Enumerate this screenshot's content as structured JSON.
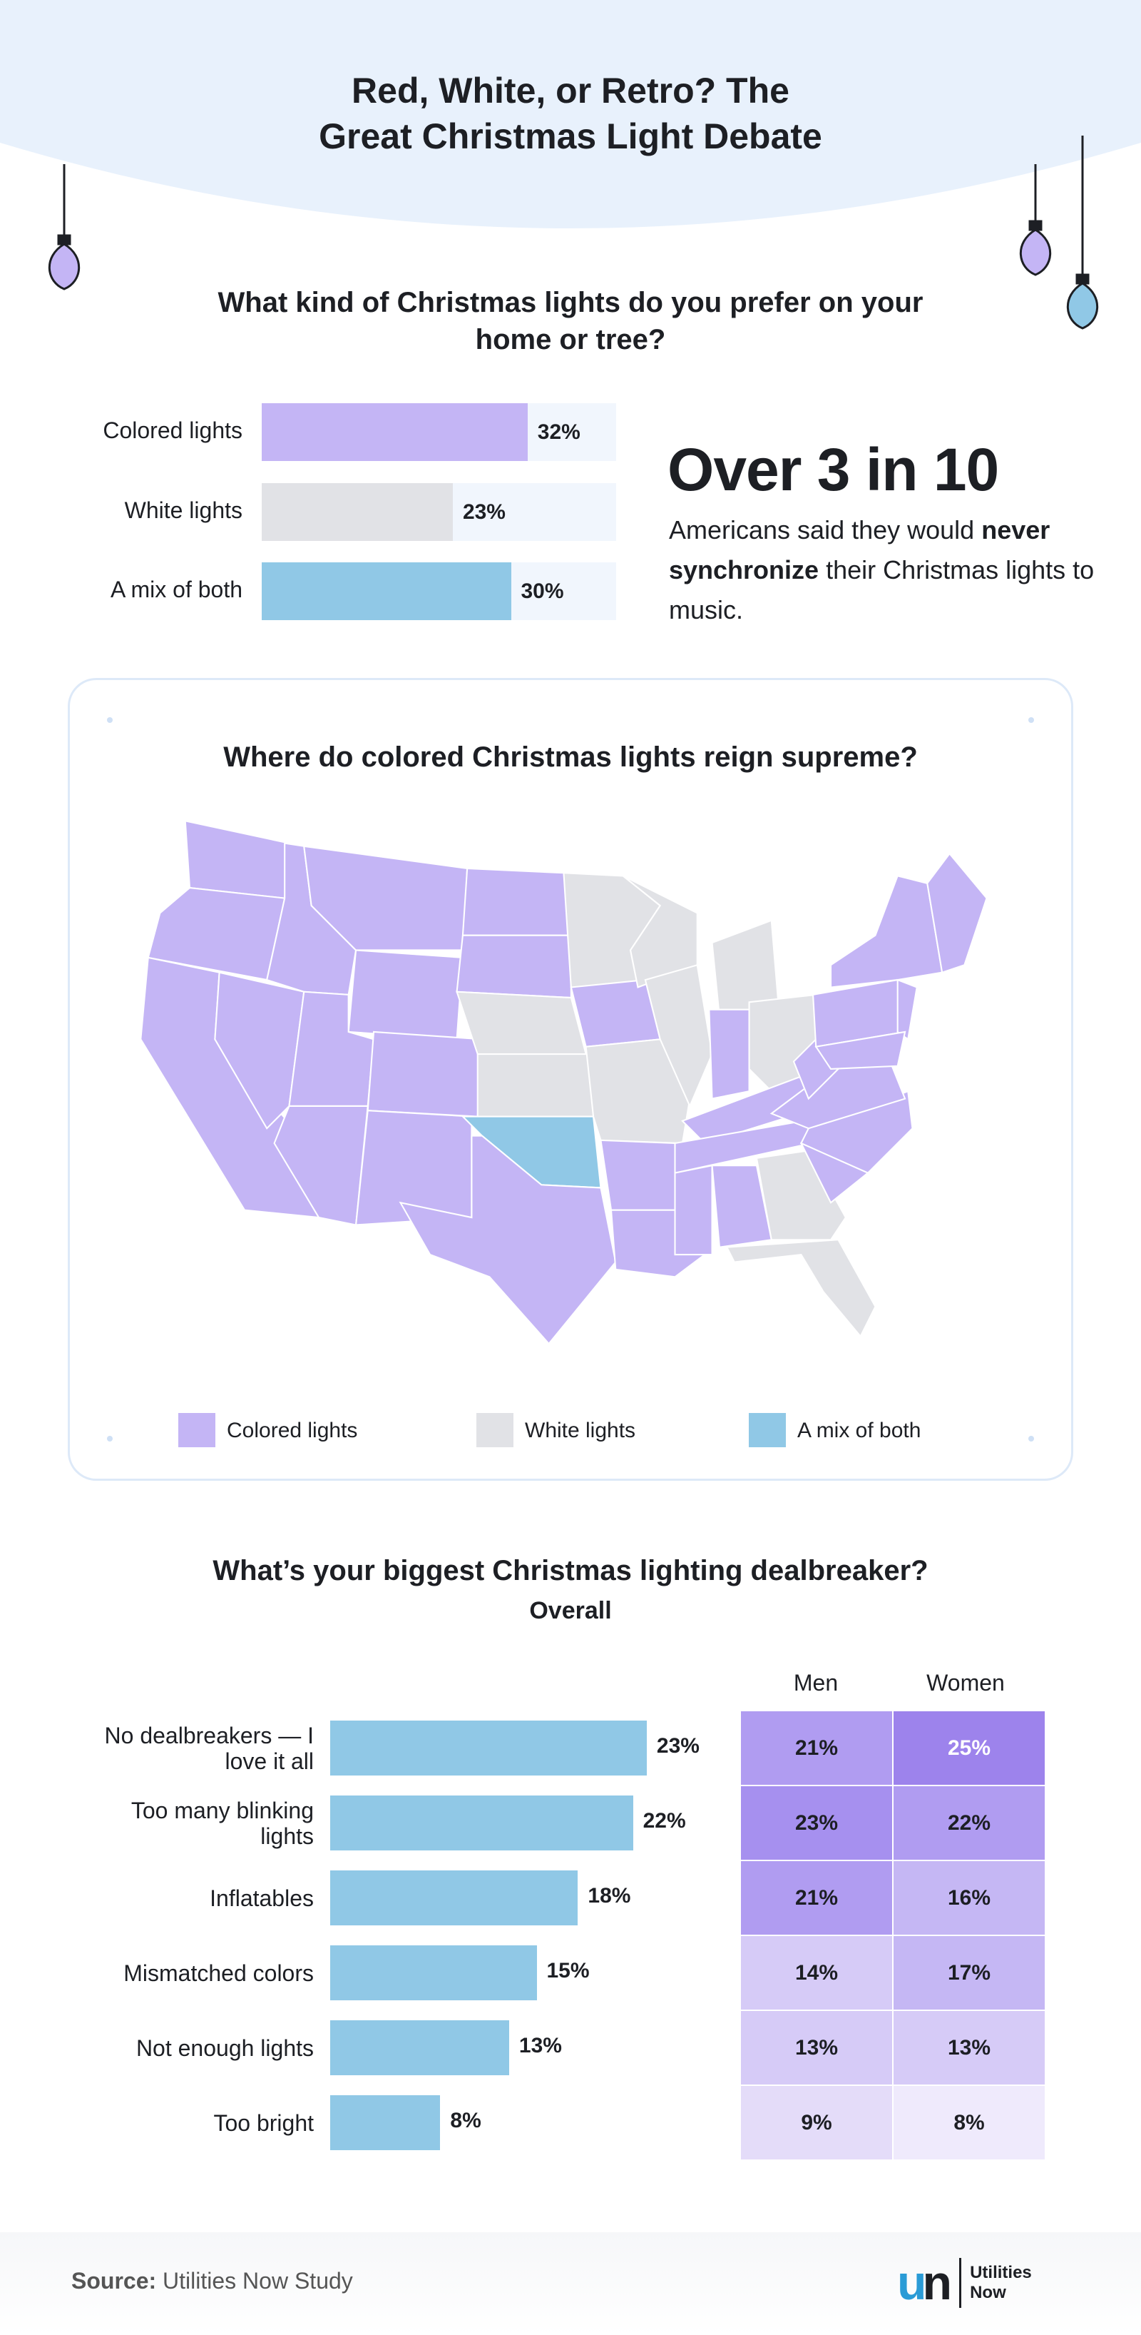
{
  "title": "Red, White, or Retro? The Great Christmas Light Debate",
  "q1": {
    "question": "What kind of Christmas lights do you prefer on your home or tree?",
    "chart_data": {
      "type": "bar",
      "categories": [
        "Colored lights",
        "White lights",
        "A mix of both"
      ],
      "values": [
        32,
        23,
        30
      ],
      "labels": [
        "32%",
        "23%",
        "30%"
      ],
      "colors": [
        "#c4b5f5",
        "#e1e2e6",
        "#90c8e6"
      ]
    }
  },
  "stat": {
    "headline": "Over 3 in 10",
    "text_before": "Americans said they would",
    "bold": "never synchronize",
    "text_after": " their Christmas lights to music."
  },
  "map": {
    "title": "Where do colored Christmas lights reign supreme?",
    "legend": [
      {
        "label": "Colored lights",
        "color": "#c4b5f5"
      },
      {
        "label": "White lights",
        "color": "#e1e2e6"
      },
      {
        "label": "A mix of both",
        "color": "#90c8e6"
      }
    ],
    "white_states": [
      "MN",
      "WI",
      "MI",
      "IL",
      "MO",
      "NE",
      "KS",
      "OH",
      "GA",
      "FL"
    ],
    "mix_states": [
      "OK"
    ]
  },
  "q2": {
    "question": "What’s your biggest Christmas lighting dealbreaker?",
    "subtitle": "Overall",
    "columns": [
      "Men",
      "Women"
    ],
    "chart_data": {
      "type": "bar",
      "categories": [
        "No dealbreakers — I love it all",
        "Too many blinking lights",
        "Inflatables",
        "Mismatched colors",
        "Not enough lights",
        "Too bright"
      ],
      "values": [
        23,
        22,
        18,
        15,
        13,
        8
      ],
      "labels": [
        "23%",
        "22%",
        "18%",
        "15%",
        "13%",
        "8%"
      ],
      "color": "#90c8e6",
      "men": [
        21,
        23,
        21,
        14,
        13,
        9
      ],
      "women": [
        25,
        22,
        16,
        17,
        13,
        8
      ],
      "men_labels": [
        "21%",
        "23%",
        "21%",
        "14%",
        "13%",
        "9%"
      ],
      "women_labels": [
        "25%",
        "22%",
        "16%",
        "17%",
        "13%",
        "8%"
      ]
    }
  },
  "footer": {
    "source_label": "Source:",
    "source": "Utilities Now Study",
    "logo_line1": "Utilities",
    "logo_line2": "Now"
  }
}
